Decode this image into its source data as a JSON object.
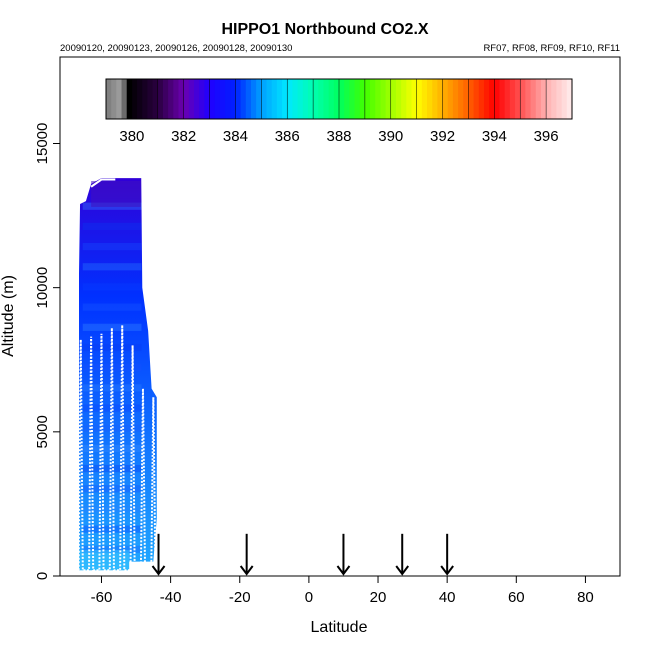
{
  "chart_data": {
    "type": "heatmap",
    "title": "HIPPO1 Northbound CO2.X",
    "subtitle_left": "20090120, 20090123, 20090126, 20090128, 20090130",
    "subtitle_right": "RF07, RF08, RF09, RF10, RF11",
    "xlabel": "Latitude",
    "ylabel": "Altitude (m)",
    "xlim": [
      -72,
      90
    ],
    "ylim": [
      0,
      18000
    ],
    "x_ticks": [
      -60,
      -40,
      -20,
      0,
      20,
      40,
      60,
      80
    ],
    "y_ticks": [
      0,
      5000,
      10000,
      15000
    ],
    "grid": false,
    "colorbar": {
      "placement": "top-inside",
      "range": [
        379,
        397
      ],
      "ticks": [
        380,
        382,
        384,
        386,
        388,
        390,
        392,
        394,
        396
      ],
      "colors": [
        "#808080",
        "#000000",
        "#3a0050",
        "#6a00c0",
        "#0000ff",
        "#00bfff",
        "#00ffc0",
        "#00ff40",
        "#80ff00",
        "#ffff00",
        "#ffa000",
        "#ff2000",
        "#ff8080",
        "#ffe8e8"
      ]
    },
    "profile_latitudes": [
      -66,
      -63,
      -60,
      -57,
      -54,
      -51,
      -48,
      -45
    ],
    "profile_top_altitudes": [
      8200,
      8300,
      8400,
      8600,
      8700,
      8000,
      6500,
      6200
    ],
    "section_extent": {
      "lat_min": -66.5,
      "lat_max": -44,
      "alt_min": 200,
      "alt_max": 13800,
      "co2_near_surface": 386.5,
      "co2_mid": 384.3,
      "co2_top": 383.2
    },
    "flight_arrow_latitudes": [
      -43.5,
      -18,
      10,
      27,
      40
    ]
  }
}
